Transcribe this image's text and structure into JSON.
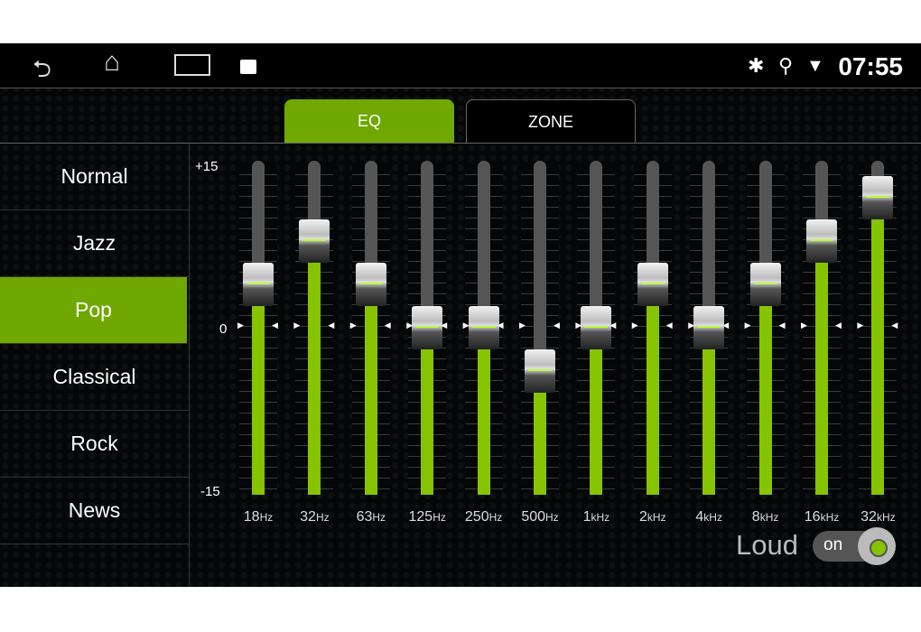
{
  "status_bar": {
    "time": "07:55",
    "icons": [
      "back-icon",
      "home-icon",
      "recents-icon",
      "gallery-icon",
      "bluetooth-icon",
      "location-icon",
      "wifi-icon"
    ]
  },
  "tabs": [
    {
      "label": "EQ",
      "active": true
    },
    {
      "label": "ZONE",
      "active": false
    }
  ],
  "presets": [
    {
      "label": "Normal"
    },
    {
      "label": "Jazz"
    },
    {
      "label": "Pop",
      "active": true
    },
    {
      "label": "Classical"
    },
    {
      "label": "Rock"
    },
    {
      "label": "News"
    }
  ],
  "scale": {
    "max": "+15",
    "zero": "0",
    "min": "-15"
  },
  "bands": [
    {
      "num": "18",
      "unit": "Hz",
      "value": 4
    },
    {
      "num": "32",
      "unit": "Hz",
      "value": 8
    },
    {
      "num": "63",
      "unit": "Hz",
      "value": 4
    },
    {
      "num": "125",
      "unit": "Hz",
      "value": 0
    },
    {
      "num": "250",
      "unit": "Hz",
      "value": 0
    },
    {
      "num": "500",
      "unit": "Hz",
      "value": -4
    },
    {
      "num": "1",
      "unit": "kHz",
      "value": 0
    },
    {
      "num": "2",
      "unit": "kHz",
      "value": 4
    },
    {
      "num": "4",
      "unit": "kHz",
      "value": 0
    },
    {
      "num": "8",
      "unit": "kHz",
      "value": 4
    },
    {
      "num": "16",
      "unit": "kHz",
      "value": 8
    },
    {
      "num": "32",
      "unit": "kHz",
      "value": 12
    }
  ],
  "loudness": {
    "label": "Loud",
    "state": "on"
  },
  "colors": {
    "accent": "#6fa800",
    "fill": "#86c400"
  }
}
